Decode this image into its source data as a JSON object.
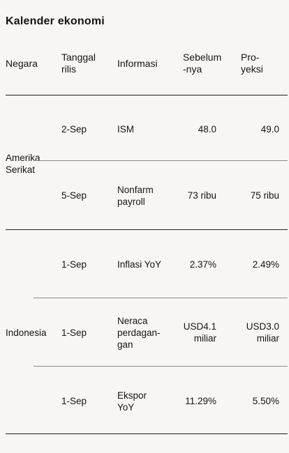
{
  "title": "Kalender ekonomi",
  "headers": {
    "country": "Negara",
    "release_date": "Tanggal\nrilis",
    "info": "Informasi",
    "previous": "Sebelum\n-nya",
    "projection": "Pro-\nyeksi"
  },
  "groups": [
    {
      "country": "Amerika\nSerikat",
      "rows": [
        {
          "date": "2-Sep",
          "info": "ISM",
          "previous": "48.0",
          "projection": "49.0"
        },
        {
          "date": "5-Sep",
          "info": "Nonfarm\npayroll",
          "previous": "73 ribu",
          "projection": "75 ribu"
        }
      ]
    },
    {
      "country": "Indonesia",
      "rows": [
        {
          "date": "1-Sep",
          "info": "Inflasi YoY",
          "previous": "2.37%",
          "projection": "2.49%"
        },
        {
          "date": "1-Sep",
          "info": "Neraca\nperdagan-\ngan",
          "previous": "USD4.1\nmiliar",
          "projection": "USD3.0\nmiliar"
        },
        {
          "date": "1-Sep",
          "info": "Ekspor\nYoY",
          "previous": "11.29%",
          "projection": "5.50%"
        }
      ]
    }
  ]
}
